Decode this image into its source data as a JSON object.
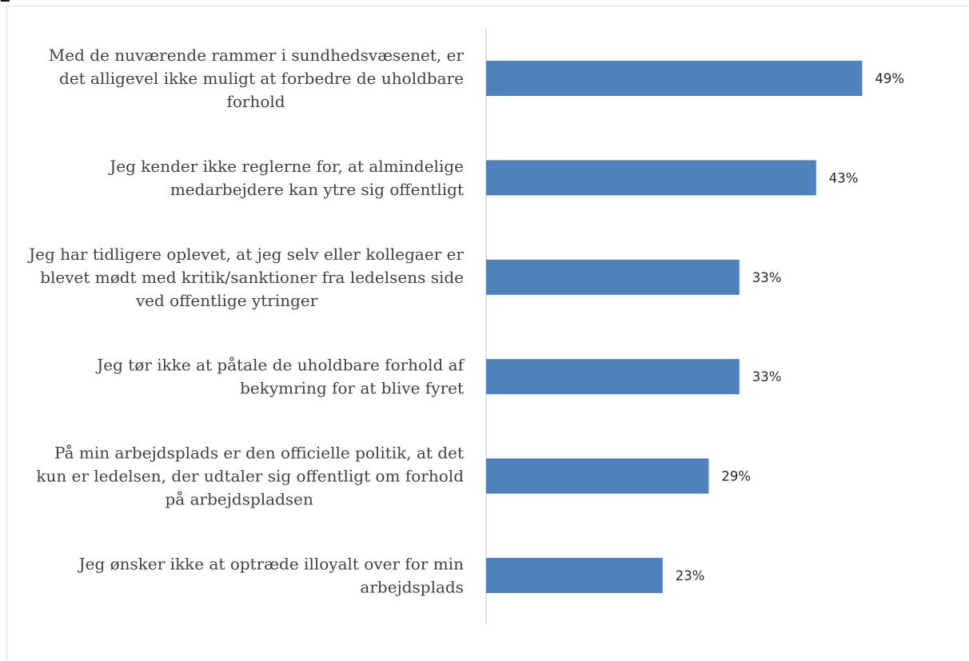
{
  "page": {
    "cut_title": "p..."
  },
  "chart_data": {
    "type": "bar",
    "orientation": "horizontal",
    "title": "",
    "xlabel": "",
    "ylabel": "",
    "value_suffix": "%",
    "xlim": [
      0,
      60
    ],
    "grid": false,
    "categories": [
      [
        "Med de nuværende rammer i sundhedsvæsenet, er",
        "det alligevel ikke muligt at forbedre de uholdbare",
        "forhold"
      ],
      [
        "Jeg kender ikke reglerne for, at almindelige",
        "medarbejdere kan ytre sig offentligt"
      ],
      [
        "Jeg har tidligere oplevet, at jeg selv eller kollegaer er",
        "blevet mødt med kritik/sanktioner fra ledelsens side",
        "ved offentlige ytringer"
      ],
      [
        "Jeg tør ikke at påtale de uholdbare forhold af",
        "bekymring for at blive fyret"
      ],
      [
        "På min arbejdsplads er den officielle politik, at det",
        "kun er ledelsen, der udtaler sig offentligt om forhold",
        "på arbejdspladsen"
      ],
      [
        "Jeg ønsker ikke at optræde illoyalt over for min",
        "arbejdsplads"
      ]
    ],
    "values": [
      49,
      43,
      33,
      33,
      29,
      23
    ],
    "labels": [
      "49%",
      "43%",
      "33%",
      "33%",
      "29%",
      "23%"
    ],
    "colors": {
      "bar": "#4f81bd",
      "axis": "#d9d9d9"
    }
  }
}
